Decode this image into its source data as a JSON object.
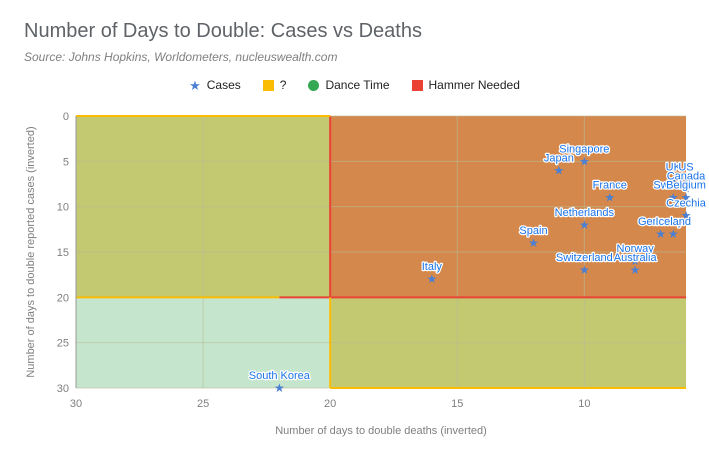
{
  "chart_data": {
    "type": "scatter",
    "title": "Number of Days to Double: Cases vs Deaths",
    "subtitle": "Source: Johns Hopkins, Worldometers, nucleuswealth.com",
    "xlabel": "Number of days to double deaths (inverted)",
    "ylabel": "Number of days to double reported cases (inverted)",
    "xlim": [
      30,
      6
    ],
    "ylim": [
      0,
      30
    ],
    "x_ticks": [
      30,
      25,
      20,
      15,
      10
    ],
    "y_ticks": [
      0,
      5,
      10,
      15,
      20,
      25,
      30
    ],
    "legend": [
      {
        "name": "Cases",
        "marker": "star",
        "color": "#4a7fd4"
      },
      {
        "name": "?",
        "marker": "square",
        "color": "#fbbc04"
      },
      {
        "name": "Dance Time",
        "marker": "circle",
        "color": "#34a853"
      },
      {
        "name": "Hammer Needed",
        "marker": "square",
        "color": "#ea4335"
      }
    ],
    "regions": [
      {
        "name": "Dance Time",
        "x": [
          30,
          20
        ],
        "y": [
          20,
          30
        ],
        "color": "#c5e6cc"
      },
      {
        "name": "?",
        "x": [
          30,
          20
        ],
        "y": [
          0,
          20
        ],
        "color": "#c2c971"
      },
      {
        "name": "?",
        "x": [
          20,
          6
        ],
        "y": [
          20,
          30
        ],
        "color": "#c2c971"
      },
      {
        "name": "Hammer Needed",
        "x": [
          20,
          6
        ],
        "y": [
          0,
          20
        ],
        "color": "#d4884c"
      }
    ],
    "points": [
      {
        "label": "Singapore",
        "x": 10,
        "y": 5
      },
      {
        "label": "Japan",
        "x": 11,
        "y": 6
      },
      {
        "label": "France",
        "x": 9,
        "y": 9
      },
      {
        "label": "UK",
        "x": 6.5,
        "y": 7
      },
      {
        "label": "US",
        "x": 6,
        "y": 7
      },
      {
        "label": "Canada",
        "x": 6,
        "y": 8
      },
      {
        "label": "Sweden",
        "x": 6.5,
        "y": 9
      },
      {
        "label": "Belgium",
        "x": 6,
        "y": 9
      },
      {
        "label": "Netherlands",
        "x": 10,
        "y": 12
      },
      {
        "label": "Czechia",
        "x": 6,
        "y": 11
      },
      {
        "label": "Germany",
        "x": 7,
        "y": 13
      },
      {
        "label": "Spain",
        "x": 12,
        "y": 14
      },
      {
        "label": "Iceland",
        "x": 6.5,
        "y": 13
      },
      {
        "label": "Norway",
        "x": 8,
        "y": 16
      },
      {
        "label": "Switzerland",
        "x": 10,
        "y": 17
      },
      {
        "label": "Australia",
        "x": 8,
        "y": 17
      },
      {
        "label": "Italy",
        "x": 16,
        "y": 18
      },
      {
        "label": "South Korea",
        "x": 22,
        "y": 30
      }
    ]
  },
  "colors": {
    "cases": "#4a7fd4",
    "question": "#fbbc04",
    "dance": "#34a853",
    "hammer": "#ea4335"
  }
}
